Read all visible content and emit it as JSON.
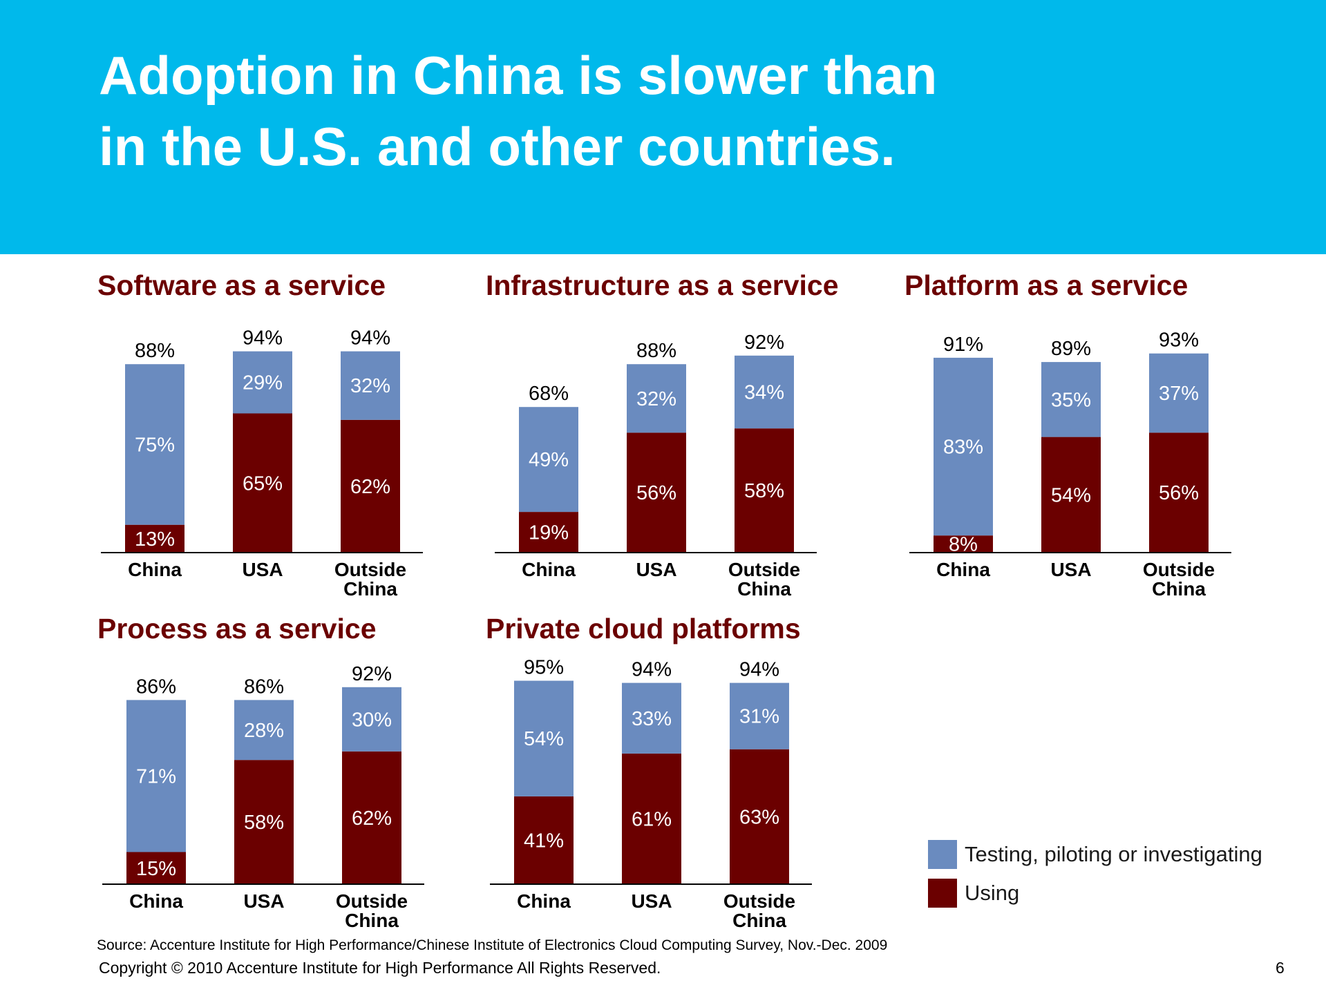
{
  "slide": {
    "title": "Adoption in China is slower than in the U.S. and other countries.",
    "source": "Source: Accenture Institute for High Performance/Chinese Institute of Electronics Cloud Computing Survey, Nov.-Dec. 2009",
    "copyright": "Copyright © 2010 Accenture Institute for High Performance All Rights Reserved.",
    "page_number": "6"
  },
  "colors": {
    "header": "#00b9eb",
    "testing": "#6a8bbf",
    "using": "#6b0000",
    "title_text": "#6b0000"
  },
  "legend": [
    {
      "label": "Testing, piloting or investigating",
      "color": "#6a8bbf"
    },
    {
      "label": "Using",
      "color": "#6b0000"
    }
  ],
  "chart_data": [
    {
      "type": "bar",
      "stacked": true,
      "title": "Software as a service",
      "categories": [
        "China",
        "USA",
        "Outside China"
      ],
      "series": [
        {
          "name": "Using",
          "values": [
            13,
            65,
            62
          ]
        },
        {
          "name": "Testing, piloting or investigating",
          "values": [
            75,
            29,
            32
          ]
        }
      ],
      "totals": [
        88,
        94,
        94
      ],
      "ylim": [
        0,
        100
      ]
    },
    {
      "type": "bar",
      "stacked": true,
      "title": "Infrastructure as a service",
      "categories": [
        "China",
        "USA",
        "Outside China"
      ],
      "series": [
        {
          "name": "Using",
          "values": [
            19,
            56,
            58
          ]
        },
        {
          "name": "Testing, piloting or investigating",
          "values": [
            49,
            32,
            34
          ]
        }
      ],
      "totals": [
        68,
        88,
        92
      ],
      "ylim": [
        0,
        100
      ]
    },
    {
      "type": "bar",
      "stacked": true,
      "title": "Platform as a service",
      "categories": [
        "China",
        "USA",
        "Outside China"
      ],
      "series": [
        {
          "name": "Using",
          "values": [
            8,
            54,
            56
          ]
        },
        {
          "name": "Testing, piloting or investigating",
          "values": [
            83,
            35,
            37
          ]
        }
      ],
      "totals": [
        91,
        89,
        93
      ],
      "ylim": [
        0,
        100
      ]
    },
    {
      "type": "bar",
      "stacked": true,
      "title": "Process as a service",
      "categories": [
        "China",
        "USA",
        "Outside China"
      ],
      "series": [
        {
          "name": "Using",
          "values": [
            15,
            58,
            62
          ]
        },
        {
          "name": "Testing, piloting or investigating",
          "values": [
            71,
            28,
            30
          ]
        }
      ],
      "totals": [
        86,
        86,
        92
      ],
      "ylim": [
        0,
        100
      ]
    },
    {
      "type": "bar",
      "stacked": true,
      "title": "Private cloud platforms",
      "categories": [
        "China",
        "USA",
        "Outside China"
      ],
      "series": [
        {
          "name": "Using",
          "values": [
            41,
            61,
            63
          ]
        },
        {
          "name": "Testing, piloting or investigating",
          "values": [
            54,
            33,
            31
          ]
        }
      ],
      "totals": [
        95,
        94,
        94
      ],
      "ylim": [
        0,
        100
      ]
    }
  ]
}
